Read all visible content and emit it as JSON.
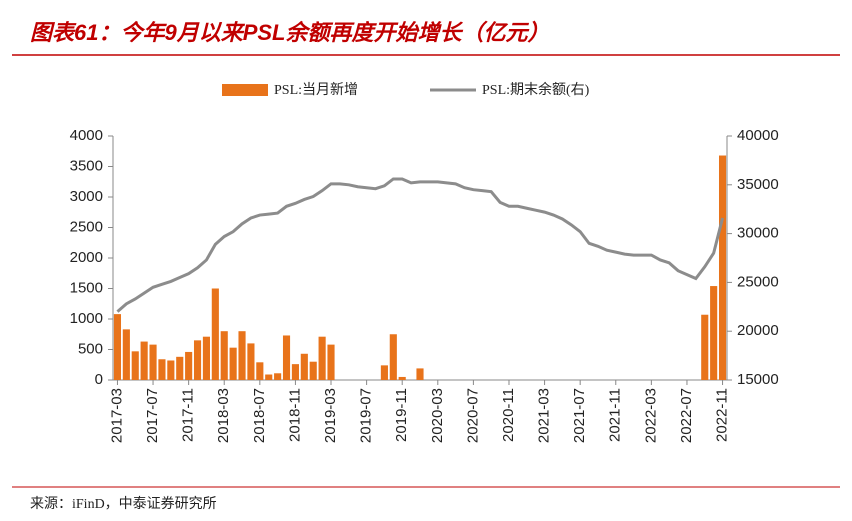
{
  "chart_data": {
    "type": "bar_line",
    "title": "图表61：今年9月以来PSL余额再度开始增长（亿元）",
    "source": "来源：iFinD，中泰证券研究所",
    "categories": [
      "2017-03",
      null,
      null,
      null,
      "2017-07",
      null,
      null,
      null,
      "2017-11",
      null,
      null,
      null,
      "2018-03",
      null,
      null,
      null,
      "2018-07",
      null,
      null,
      null,
      "2018-11",
      null,
      null,
      null,
      "2019-03",
      null,
      null,
      null,
      "2019-07",
      null,
      null,
      null,
      "2019-11",
      null,
      null,
      null,
      "2020-03",
      null,
      null,
      null,
      "2020-07",
      null,
      null,
      null,
      "2020-11",
      null,
      null,
      null,
      "2021-03",
      null,
      null,
      null,
      "2021-07",
      null,
      null,
      null,
      "2021-11",
      null,
      null,
      null,
      "2022-03",
      null,
      null,
      null,
      "2022-07",
      null,
      null,
      null,
      "2022-11"
    ],
    "series": [
      {
        "name": "PSL:当月新增",
        "color": "#e8731a",
        "type": "bar",
        "values": [
          1080,
          830,
          470,
          630,
          580,
          340,
          320,
          380,
          460,
          650,
          710,
          1500,
          800,
          530,
          800,
          600,
          290,
          90,
          110,
          730,
          260,
          430,
          300,
          710,
          580,
          0,
          0,
          0,
          0,
          0,
          240,
          750,
          50,
          0,
          190,
          0,
          0,
          0,
          0,
          0,
          0,
          0,
          0,
          0,
          0,
          0,
          0,
          0,
          0,
          0,
          0,
          0,
          0,
          0,
          0,
          0,
          0,
          0,
          0,
          0,
          0,
          0,
          0,
          0,
          0,
          0,
          1070,
          1540,
          3680
        ]
      },
      {
        "name": "PSL:期末余额(右)",
        "color": "#8c8c8c",
        "type": "line",
        "axis": "y2",
        "values": [
          22000,
          22800,
          23300,
          23900,
          24500,
          24800,
          25100,
          25500,
          25900,
          26500,
          27300,
          28900,
          29700,
          30200,
          31000,
          31600,
          31900,
          32000,
          32100,
          32800,
          33100,
          33500,
          33800,
          34400,
          35100,
          35100,
          35000,
          34800,
          34700,
          34600,
          34900,
          35600,
          35600,
          35200,
          35300,
          35300,
          35300,
          35200,
          35100,
          34700,
          34500,
          34400,
          34300,
          33200,
          32800,
          32800,
          32600,
          32400,
          32200,
          31900,
          31500,
          30900,
          30200,
          29000,
          28700,
          28300,
          28100,
          27900,
          27800,
          27800,
          27800,
          27300,
          27000,
          26200,
          25800,
          25400,
          26600,
          28000,
          31600
        ]
      }
    ],
    "ylim": [
      0,
      4000
    ],
    "yticks": [
      0,
      500,
      1000,
      1500,
      2000,
      2500,
      3000,
      3500,
      4000
    ],
    "y2lim": [
      15000,
      40000
    ],
    "y2ticks": [
      15000,
      20000,
      25000,
      30000,
      35000,
      40000
    ]
  }
}
